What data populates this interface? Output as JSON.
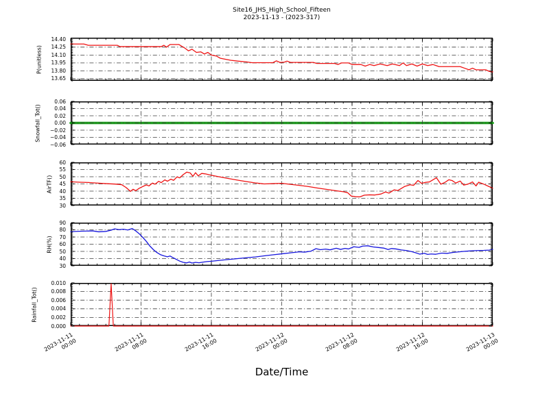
{
  "figure": {
    "title_line1": "Site16_JHS_High_School_Fifteen",
    "title_line2": "2023-11-13 - (2023-317)",
    "xaxis_title": "Date/Time",
    "background": "#ffffff",
    "grid_color": "#3a3a3a",
    "axis_color": "#000000"
  },
  "x_axis": {
    "range_hours": [
      0,
      48
    ],
    "tick_hours": [
      0,
      8,
      16,
      24,
      32,
      40,
      48
    ],
    "tick_labels": [
      [
        "2023-11-11",
        "00:00"
      ],
      [
        "2023-11-11",
        "08:00"
      ],
      [
        "2023-11-11",
        "16:00"
      ],
      [
        "2023-11-12",
        "00:00"
      ],
      [
        "2023-11-12",
        "08:00"
      ],
      [
        "2023-11-12",
        "16:00"
      ],
      [
        "2023-11-13",
        "00:00"
      ]
    ],
    "minor_step_hours": 1
  },
  "chart_data": [
    {
      "type": "line",
      "name": "P",
      "ylabel": "P(unitless)",
      "ylabel_x": 57,
      "ylim": [
        13.61,
        14.43
      ],
      "yticks": [
        14.4,
        14.25,
        14.1,
        13.95,
        13.8,
        13.65
      ],
      "ytick_labels": [
        "14.40",
        "14.25",
        "14.10",
        "13.95",
        "13.80",
        "13.65"
      ],
      "y_minor_step": 0.03,
      "line_color": "#ee1111",
      "line_width": 1.3,
      "grid_over_line": false,
      "points": [
        [
          0,
          14.31
        ],
        [
          1.5,
          14.31
        ],
        [
          2,
          14.285
        ],
        [
          5.3,
          14.285
        ],
        [
          5.6,
          14.26
        ],
        [
          10.3,
          14.26
        ],
        [
          10.6,
          14.285
        ],
        [
          10.9,
          14.25
        ],
        [
          11.3,
          14.3
        ],
        [
          12.3,
          14.3
        ],
        [
          13,
          14.23
        ],
        [
          13.4,
          14.18
        ],
        [
          13.8,
          14.21
        ],
        [
          14.3,
          14.15
        ],
        [
          14.8,
          14.16
        ],
        [
          15.2,
          14.12
        ],
        [
          15.6,
          14.15
        ],
        [
          16,
          14.1
        ],
        [
          16.6,
          14.08
        ],
        [
          17,
          14.04
        ],
        [
          17.6,
          14.02
        ],
        [
          18.2,
          14.0
        ],
        [
          19,
          13.985
        ],
        [
          20,
          13.97
        ],
        [
          20.6,
          13.955
        ],
        [
          23,
          13.955
        ],
        [
          23.4,
          13.99
        ],
        [
          23.8,
          13.96
        ],
        [
          24.3,
          13.965
        ],
        [
          24.6,
          13.985
        ],
        [
          25,
          13.96
        ],
        [
          27.6,
          13.96
        ],
        [
          28,
          13.94
        ],
        [
          30,
          13.94
        ],
        [
          30.4,
          13.92
        ],
        [
          30.8,
          13.95
        ],
        [
          31.6,
          13.95
        ],
        [
          32,
          13.92
        ],
        [
          33,
          13.92
        ],
        [
          33.5,
          13.89
        ],
        [
          34,
          13.92
        ],
        [
          34.5,
          13.9
        ],
        [
          35.2,
          13.93
        ],
        [
          36,
          13.9
        ],
        [
          36.6,
          13.93
        ],
        [
          37.4,
          13.9
        ],
        [
          37.8,
          13.95
        ],
        [
          38.2,
          13.9
        ],
        [
          38.8,
          13.93
        ],
        [
          39.4,
          13.89
        ],
        [
          40,
          13.93
        ],
        [
          40.6,
          13.9
        ],
        [
          41.2,
          13.92
        ],
        [
          41.9,
          13.88
        ],
        [
          44.3,
          13.88
        ],
        [
          44.8,
          13.85
        ],
        [
          45.3,
          13.82
        ],
        [
          45.7,
          13.85
        ],
        [
          46.1,
          13.82
        ],
        [
          47.2,
          13.82
        ],
        [
          47.6,
          13.79
        ],
        [
          48,
          13.78
        ]
      ]
    },
    {
      "type": "line",
      "name": "Snowfall_Tot",
      "ylabel": "Snowfall_Tot()",
      "ylabel_x": 55,
      "ylim": [
        -0.06,
        0.06
      ],
      "yticks": [
        0.06,
        0.04,
        0.02,
        0.0,
        -0.02,
        -0.04,
        -0.06
      ],
      "ytick_labels": [
        "0.06",
        "0.04",
        "0.02",
        "0.00",
        "−0.02",
        "−0.04",
        "−0.06"
      ],
      "y_minor_step": 0.004,
      "line_color": "#1e9e1e",
      "line_width": 3.6,
      "grid_over_line": true,
      "points": [
        [
          0,
          0
        ],
        [
          48,
          0
        ]
      ]
    },
    {
      "type": "line",
      "name": "AirTF",
      "ylabel": "AirTF()",
      "ylabel_x": 72,
      "ylim": [
        30,
        60
      ],
      "yticks": [
        60,
        55,
        50,
        45,
        40,
        35,
        30
      ],
      "ytick_labels": [
        "60",
        "55",
        "50",
        "45",
        "40",
        "35",
        "30"
      ],
      "y_minor_step": 1,
      "line_color": "#ee1111",
      "line_width": 1.3,
      "grid_over_line": false,
      "points": [
        [
          0,
          46.5
        ],
        [
          1,
          46.2
        ],
        [
          2,
          46
        ],
        [
          3,
          45.6
        ],
        [
          4,
          45.2
        ],
        [
          5,
          44.9
        ],
        [
          5.8,
          44.5
        ],
        [
          6.3,
          42.5
        ],
        [
          6.8,
          39.8
        ],
        [
          7.1,
          41.3
        ],
        [
          7.4,
          40.3
        ],
        [
          7.8,
          42
        ],
        [
          8.2,
          43.2
        ],
        [
          8.6,
          44.3
        ],
        [
          8.9,
          43.6
        ],
        [
          9.3,
          45.6
        ],
        [
          9.6,
          44.8
        ],
        [
          10,
          46.8
        ],
        [
          10.3,
          45.9
        ],
        [
          10.7,
          47.8
        ],
        [
          11,
          46.9
        ],
        [
          11.4,
          48.3
        ],
        [
          11.7,
          47.5
        ],
        [
          12.1,
          49.9
        ],
        [
          12.4,
          49.2
        ],
        [
          12.8,
          51.5
        ],
        [
          13.2,
          53.2
        ],
        [
          13.6,
          52.6
        ],
        [
          13.9,
          50.3
        ],
        [
          14.2,
          52.8
        ],
        [
          14.5,
          50.6
        ],
        [
          14.9,
          52.3
        ],
        [
          15.3,
          52
        ],
        [
          16,
          51
        ],
        [
          17,
          49.8
        ],
        [
          18,
          48.7
        ],
        [
          19,
          47.6
        ],
        [
          20,
          46.6
        ],
        [
          21,
          45.7
        ],
        [
          22,
          45
        ],
        [
          23,
          45.2
        ],
        [
          24,
          45.4
        ],
        [
          25,
          44.7
        ],
        [
          26,
          44
        ],
        [
          27,
          43.2
        ],
        [
          28,
          42.2
        ],
        [
          29,
          41.3
        ],
        [
          30,
          40.4
        ],
        [
          31,
          39.6
        ],
        [
          31.5,
          38.9
        ],
        [
          31.9,
          36.6
        ],
        [
          32.4,
          36.1
        ],
        [
          32.9,
          36
        ],
        [
          33.4,
          37.2
        ],
        [
          34,
          37.4
        ],
        [
          34.6,
          37.3
        ],
        [
          35.3,
          38
        ],
        [
          35.8,
          39.4
        ],
        [
          36.2,
          38.6
        ],
        [
          36.8,
          40.9
        ],
        [
          37.2,
          40.4
        ],
        [
          38,
          43.3
        ],
        [
          38.6,
          44.4
        ],
        [
          39,
          44
        ],
        [
          39.5,
          47.4
        ],
        [
          39.9,
          45.4
        ],
        [
          40.4,
          46.1
        ],
        [
          40.8,
          46.4
        ],
        [
          41.6,
          49.3
        ],
        [
          42.1,
          44.8
        ],
        [
          42.6,
          46.2
        ],
        [
          43,
          47.9
        ],
        [
          43.4,
          47.3
        ],
        [
          43.8,
          45.6
        ],
        [
          44.3,
          47
        ],
        [
          44.7,
          44.2
        ],
        [
          45.2,
          44.9
        ],
        [
          45.7,
          46.4
        ],
        [
          46.1,
          43.6
        ],
        [
          46.4,
          46.2
        ],
        [
          47,
          44.8
        ],
        [
          47.5,
          43.4
        ],
        [
          48,
          42
        ]
      ]
    },
    {
      "type": "line",
      "name": "RH",
      "ylabel": "RH(%)",
      "ylabel_x": 72,
      "ylim": [
        30,
        90
      ],
      "yticks": [
        90,
        80,
        70,
        60,
        50,
        40,
        30
      ],
      "ytick_labels": [
        "90",
        "80",
        "70",
        "60",
        "50",
        "40",
        "30"
      ],
      "y_minor_step": 2,
      "line_color": "#1414dd",
      "line_width": 1.3,
      "grid_over_line": false,
      "points": [
        [
          0,
          77.5
        ],
        [
          1,
          78
        ],
        [
          2.5,
          78.5
        ],
        [
          3.2,
          77.2
        ],
        [
          4,
          77.8
        ],
        [
          4.6,
          79.5
        ],
        [
          5,
          81.3
        ],
        [
          5.5,
          80.2
        ],
        [
          6,
          80.8
        ],
        [
          6.5,
          79.8
        ],
        [
          7,
          81.8
        ],
        [
          7.4,
          78.5
        ],
        [
          7.8,
          74.5
        ],
        [
          8.2,
          69.5
        ],
        [
          8.6,
          64
        ],
        [
          9,
          57.5
        ],
        [
          9.4,
          52.5
        ],
        [
          9.8,
          48.5
        ],
        [
          10.2,
          45.5
        ],
        [
          10.6,
          43.8
        ],
        [
          11,
          42.5
        ],
        [
          11.3,
          43.6
        ],
        [
          11.6,
          41.5
        ],
        [
          12,
          39
        ],
        [
          12.4,
          36.5
        ],
        [
          12.8,
          34.8
        ],
        [
          13.2,
          34
        ],
        [
          13.5,
          35.2
        ],
        [
          13.8,
          33.8
        ],
        [
          14.2,
          34.8
        ],
        [
          14.6,
          34.2
        ],
        [
          15,
          35
        ],
        [
          15.5,
          35.8
        ],
        [
          16,
          36.3
        ],
        [
          17,
          37.6
        ],
        [
          18,
          38.8
        ],
        [
          19,
          40
        ],
        [
          20,
          41.2
        ],
        [
          21,
          42.3
        ],
        [
          22,
          43.8
        ],
        [
          23,
          45.2
        ],
        [
          24,
          46.6
        ],
        [
          25,
          48
        ],
        [
          26,
          49.4
        ],
        [
          26.6,
          49
        ],
        [
          27.3,
          50.2
        ],
        [
          27.9,
          53.8
        ],
        [
          28.4,
          52.4
        ],
        [
          29,
          53.2
        ],
        [
          29.5,
          52.2
        ],
        [
          30.2,
          54.4
        ],
        [
          30.7,
          52.8
        ],
        [
          31.2,
          54.2
        ],
        [
          31.6,
          53.4
        ],
        [
          32.2,
          56.4
        ],
        [
          32.8,
          55.6
        ],
        [
          33.2,
          57.4
        ],
        [
          33.8,
          57.8
        ],
        [
          34.4,
          56.2
        ],
        [
          35,
          55.4
        ],
        [
          35.6,
          54.6
        ],
        [
          36.1,
          52.6
        ],
        [
          36.5,
          54
        ],
        [
          37,
          53.4
        ],
        [
          37.6,
          52
        ],
        [
          38.2,
          51.2
        ],
        [
          38.8,
          49.6
        ],
        [
          39.3,
          47.8
        ],
        [
          39.7,
          46.2
        ],
        [
          40.2,
          47.4
        ],
        [
          40.6,
          45.8
        ],
        [
          41,
          46.4
        ],
        [
          41.5,
          46
        ],
        [
          42.2,
          47.6
        ],
        [
          42.8,
          47.2
        ],
        [
          43.5,
          48.6
        ],
        [
          44.2,
          49.4
        ],
        [
          44.9,
          50.2
        ],
        [
          45.6,
          50.8
        ],
        [
          46.3,
          51.2
        ],
        [
          47,
          51.4
        ],
        [
          47.6,
          51.8
        ],
        [
          48,
          52.9
        ]
      ]
    },
    {
      "type": "line",
      "name": "Rainfall_Tot",
      "ylabel": "Rainfall_Tot()",
      "ylabel_x": 50,
      "ylim": [
        0.0,
        0.01
      ],
      "yticks": [
        0.01,
        0.008,
        0.006,
        0.004,
        0.002,
        0.0
      ],
      "ytick_labels": [
        "0.010",
        "0.008",
        "0.006",
        "0.004",
        "0.002",
        "0.000"
      ],
      "y_minor_step": 0.0004,
      "line_color": "#ee1111",
      "line_width": 1.2,
      "grid_over_line": false,
      "points": [
        [
          0,
          0
        ],
        [
          4.35,
          0
        ],
        [
          4.6,
          0.0098
        ],
        [
          4.85,
          0
        ],
        [
          48,
          0
        ]
      ]
    }
  ]
}
